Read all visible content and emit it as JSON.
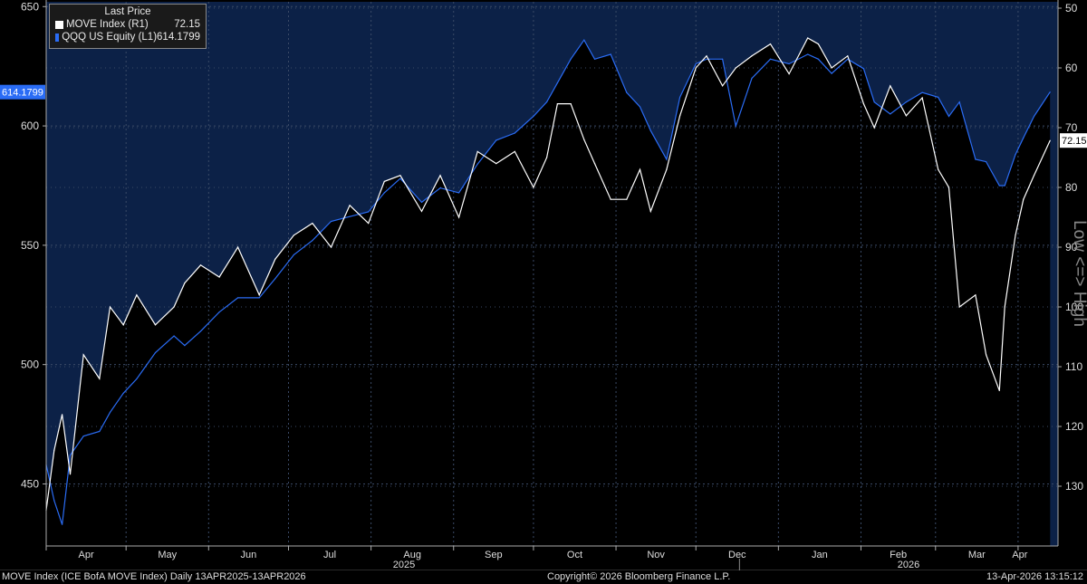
{
  "chart_data": {
    "type": "line",
    "legend": {
      "title": "Last Price",
      "placement": "top-left",
      "entries": [
        {
          "name": "MOVE Index  (R1)",
          "value": "72.15",
          "color": "#ffffff"
        },
        {
          "name": "QQQ US Equity  (L1)",
          "value": "614.1799",
          "color": "#2a6cf5"
        }
      ]
    },
    "left_axis": {
      "ticks": [
        "650",
        "600",
        "550",
        "500",
        "450"
      ],
      "ylim": [
        424,
        652
      ],
      "last_label": "614.1799"
    },
    "right_axis": {
      "ticks": [
        "50",
        "60",
        "70",
        "80",
        "90",
        "100",
        "110",
        "120",
        "130"
      ],
      "ylim": [
        50,
        140
      ],
      "inverted": true,
      "label": "Low <=> High",
      "last_label": "72.15"
    },
    "x_axis": {
      "months": [
        "Apr",
        "May",
        "Jun",
        "Jul",
        "Aug",
        "Sep",
        "Oct",
        "Nov",
        "Dec",
        "Jan",
        "Feb",
        "Mar",
        "Apr"
      ],
      "years": [
        "2025",
        "2026"
      ],
      "range": [
        "2025-04-01",
        "2026-04-16"
      ]
    },
    "grid": true,
    "series": [
      {
        "name": "QQQ US Equity  (L1)",
        "axis": "left",
        "fill": true,
        "color": "#2a6cf5",
        "points": [
          [
            "2025-04-01",
            458
          ],
          [
            "2025-04-04",
            443
          ],
          [
            "2025-04-07",
            433
          ],
          [
            "2025-04-10",
            462
          ],
          [
            "2025-04-15",
            470
          ],
          [
            "2025-04-21",
            472
          ],
          [
            "2025-04-25",
            480
          ],
          [
            "2025-04-30",
            488
          ],
          [
            "2025-05-05",
            494
          ],
          [
            "2025-05-12",
            505
          ],
          [
            "2025-05-19",
            512
          ],
          [
            "2025-05-23",
            508
          ],
          [
            "2025-05-29",
            514
          ],
          [
            "2025-06-05",
            522
          ],
          [
            "2025-06-12",
            528
          ],
          [
            "2025-06-20",
            528
          ],
          [
            "2025-06-26",
            536
          ],
          [
            "2025-07-03",
            546
          ],
          [
            "2025-07-10",
            552
          ],
          [
            "2025-07-17",
            560
          ],
          [
            "2025-07-24",
            562
          ],
          [
            "2025-07-31",
            564
          ],
          [
            "2025-08-06",
            572
          ],
          [
            "2025-08-12",
            578
          ],
          [
            "2025-08-20",
            568
          ],
          [
            "2025-08-27",
            574
          ],
          [
            "2025-09-03",
            572
          ],
          [
            "2025-09-10",
            584
          ],
          [
            "2025-09-17",
            594
          ],
          [
            "2025-09-24",
            597
          ],
          [
            "2025-10-01",
            604
          ],
          [
            "2025-10-06",
            610
          ],
          [
            "2025-10-10",
            618
          ],
          [
            "2025-10-15",
            628
          ],
          [
            "2025-10-20",
            636
          ],
          [
            "2025-10-24",
            628
          ],
          [
            "2025-10-30",
            630
          ],
          [
            "2025-11-05",
            614
          ],
          [
            "2025-11-10",
            608
          ],
          [
            "2025-11-14",
            598
          ],
          [
            "2025-11-20",
            586
          ],
          [
            "2025-11-25",
            612
          ],
          [
            "2025-12-01",
            626
          ],
          [
            "2025-12-05",
            628
          ],
          [
            "2025-12-11",
            628
          ],
          [
            "2025-12-16",
            600
          ],
          [
            "2025-12-22",
            620
          ],
          [
            "2025-12-29",
            628
          ],
          [
            "2026-01-05",
            626
          ],
          [
            "2026-01-12",
            630
          ],
          [
            "2026-01-16",
            628
          ],
          [
            "2026-01-21",
            622
          ],
          [
            "2026-01-27",
            628
          ],
          [
            "2026-02-02",
            624
          ],
          [
            "2026-02-06",
            610
          ],
          [
            "2026-02-12",
            605
          ],
          [
            "2026-02-18",
            610
          ],
          [
            "2026-02-24",
            614
          ],
          [
            "2026-03-02",
            612
          ],
          [
            "2026-03-06",
            604
          ],
          [
            "2026-03-10",
            610
          ],
          [
            "2026-03-16",
            586
          ],
          [
            "2026-03-20",
            585
          ],
          [
            "2026-03-25",
            575
          ],
          [
            "2026-03-27",
            575
          ],
          [
            "2026-03-31",
            588
          ],
          [
            "2026-04-03",
            595
          ],
          [
            "2026-04-07",
            604
          ],
          [
            "2026-04-13",
            614.18
          ]
        ]
      },
      {
        "name": "MOVE Index  (R1)",
        "axis": "right",
        "fill": true,
        "color": "#ffffff",
        "points": [
          [
            "2025-04-01",
            134
          ],
          [
            "2025-04-04",
            124
          ],
          [
            "2025-04-07",
            118
          ],
          [
            "2025-04-10",
            128
          ],
          [
            "2025-04-15",
            108
          ],
          [
            "2025-04-21",
            112
          ],
          [
            "2025-04-25",
            100
          ],
          [
            "2025-04-30",
            103
          ],
          [
            "2025-05-05",
            98
          ],
          [
            "2025-05-12",
            103
          ],
          [
            "2025-05-19",
            100
          ],
          [
            "2025-05-23",
            96
          ],
          [
            "2025-05-29",
            93
          ],
          [
            "2025-06-05",
            95
          ],
          [
            "2025-06-12",
            90
          ],
          [
            "2025-06-20",
            98
          ],
          [
            "2025-06-26",
            92
          ],
          [
            "2025-07-03",
            88
          ],
          [
            "2025-07-10",
            86
          ],
          [
            "2025-07-17",
            90
          ],
          [
            "2025-07-24",
            83
          ],
          [
            "2025-07-31",
            86
          ],
          [
            "2025-08-06",
            79
          ],
          [
            "2025-08-12",
            78
          ],
          [
            "2025-08-20",
            84
          ],
          [
            "2025-08-27",
            78
          ],
          [
            "2025-09-03",
            85
          ],
          [
            "2025-09-10",
            74
          ],
          [
            "2025-09-17",
            76
          ],
          [
            "2025-09-24",
            74
          ],
          [
            "2025-10-01",
            80
          ],
          [
            "2025-10-06",
            75
          ],
          [
            "2025-10-10",
            66
          ],
          [
            "2025-10-15",
            66
          ],
          [
            "2025-10-20",
            72
          ],
          [
            "2025-10-24",
            76
          ],
          [
            "2025-10-30",
            82
          ],
          [
            "2025-11-05",
            82
          ],
          [
            "2025-11-10",
            77
          ],
          [
            "2025-11-14",
            84
          ],
          [
            "2025-11-20",
            77
          ],
          [
            "2025-11-25",
            68
          ],
          [
            "2025-12-01",
            60
          ],
          [
            "2025-12-05",
            58
          ],
          [
            "2025-12-11",
            63
          ],
          [
            "2025-12-16",
            60
          ],
          [
            "2025-12-22",
            58
          ],
          [
            "2025-12-29",
            56
          ],
          [
            "2026-01-05",
            61
          ],
          [
            "2026-01-12",
            55
          ],
          [
            "2026-01-16",
            56
          ],
          [
            "2026-01-21",
            60
          ],
          [
            "2026-01-27",
            58
          ],
          [
            "2026-02-02",
            66
          ],
          [
            "2026-02-06",
            70
          ],
          [
            "2026-02-12",
            63
          ],
          [
            "2026-02-18",
            68
          ],
          [
            "2026-02-24",
            65
          ],
          [
            "2026-03-02",
            77
          ],
          [
            "2026-03-06",
            80
          ],
          [
            "2026-03-10",
            100
          ],
          [
            "2026-03-16",
            98
          ],
          [
            "2026-03-20",
            108
          ],
          [
            "2026-03-25",
            114
          ],
          [
            "2026-03-27",
            100
          ],
          [
            "2026-03-31",
            88
          ],
          [
            "2026-04-03",
            82
          ],
          [
            "2026-04-07",
            78
          ],
          [
            "2026-04-13",
            72.15
          ]
        ]
      }
    ]
  },
  "footer": {
    "left": "MOVE Index (ICE BofA MOVE Index) Daily 13APR2025-13APR2026",
    "center": "Copyright© 2026 Bloomberg Finance L.P.",
    "right": "13-Apr-2026 13:15:12"
  },
  "colors": {
    "plot_bg": "#0c2147",
    "qqq": "#2a6cf5",
    "move": "#ffffff",
    "grid": "#3a4a66"
  }
}
